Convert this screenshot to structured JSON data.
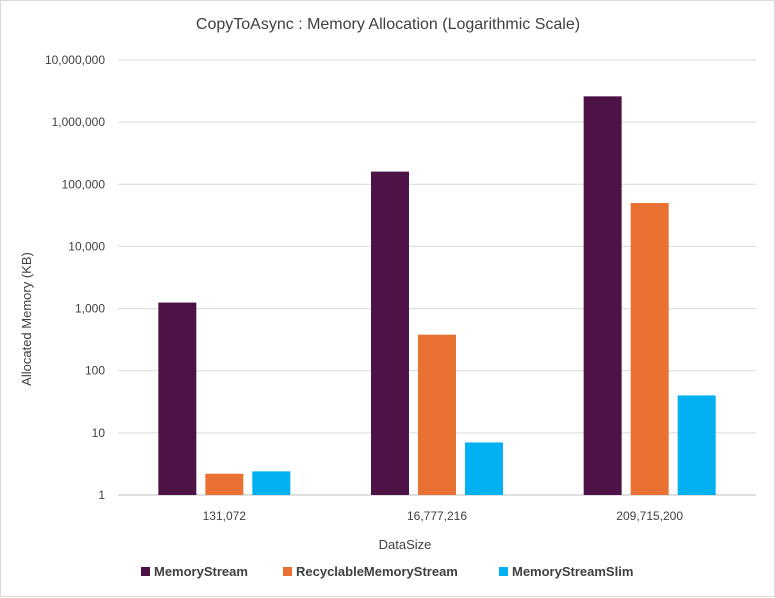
{
  "chart_data": {
    "type": "bar",
    "title": "CopyToAsync : Memory Allocation (Logarithmic Scale)",
    "xlabel": "DataSize",
    "ylabel": "Allocated Memory (KB)",
    "y_scale": "log10",
    "ylim": [
      1,
      10000000
    ],
    "y_ticks": [
      1,
      10,
      100,
      1000,
      10000,
      100000,
      1000000,
      10000000
    ],
    "y_tick_labels": [
      "1",
      "10",
      "100",
      "1,000",
      "10,000",
      "100,000",
      "1,000,000",
      "10,000,000"
    ],
    "categories": [
      "131,072",
      "16,777,216",
      "209,715,200"
    ],
    "grid": true,
    "legend_position": "bottom",
    "series": [
      {
        "name": "MemoryStream",
        "color": "#4e1346",
        "values": [
          1250,
          160000,
          2600000
        ]
      },
      {
        "name": "RecyclableMemoryStream",
        "color": "#e97132",
        "values": [
          2.2,
          380,
          50000
        ]
      },
      {
        "name": "MemoryStreamSlim",
        "color": "#00b0f0",
        "values": [
          2.4,
          7,
          40
        ]
      }
    ]
  }
}
